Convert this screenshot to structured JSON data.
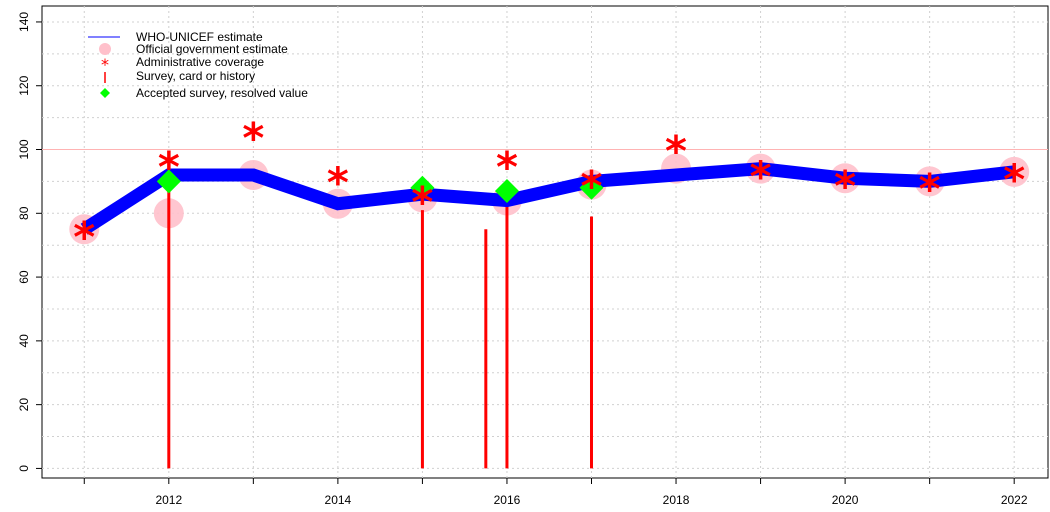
{
  "chart_data": {
    "type": "line",
    "x": [
      2011,
      2012,
      2013,
      2014,
      2015,
      2016,
      2017,
      2018,
      2019,
      2020,
      2021,
      2022
    ],
    "xlim": [
      2010.5,
      2022.4
    ],
    "ylim": [
      -3,
      145
    ],
    "x_ticks": [
      2012,
      2014,
      2016,
      2018,
      2020,
      2022
    ],
    "y_ticks": [
      0,
      20,
      40,
      60,
      80,
      100,
      120,
      140
    ],
    "grid": true,
    "reference_line": 100,
    "legend_position": "top-left",
    "series": [
      {
        "name": "WHO-UNICEF estimate",
        "color": "#0000ff",
        "points": [
          [
            2011,
            75
          ],
          [
            2012,
            92
          ],
          [
            2013,
            92
          ],
          [
            2014,
            83
          ],
          [
            2015,
            86
          ],
          [
            2016,
            84
          ],
          [
            2017,
            90
          ],
          [
            2018,
            92
          ],
          [
            2019,
            94
          ],
          [
            2020,
            91
          ],
          [
            2021,
            90
          ],
          [
            2022,
            93
          ]
        ]
      },
      {
        "name": "Official government estimate",
        "color": "#ffc0cb",
        "points": [
          [
            2011,
            75
          ],
          [
            2012,
            80
          ],
          [
            2013,
            92
          ],
          [
            2014,
            83
          ],
          [
            2015,
            85
          ],
          [
            2016,
            84
          ],
          [
            2017,
            89
          ],
          [
            2018,
            94
          ],
          [
            2019,
            94
          ],
          [
            2020,
            91
          ],
          [
            2021,
            90
          ],
          [
            2022,
            93
          ]
        ]
      },
      {
        "name": "Administrative coverage",
        "color": "#ff0000",
        "points": [
          [
            2011,
            74
          ],
          [
            2012,
            96
          ],
          [
            2013,
            105
          ],
          [
            2014,
            91
          ],
          [
            2015,
            85
          ],
          [
            2016,
            96
          ],
          [
            2017,
            90
          ],
          [
            2018,
            101
          ],
          [
            2019,
            93
          ],
          [
            2020,
            90
          ],
          [
            2021,
            89
          ],
          [
            2022,
            92
          ]
        ]
      },
      {
        "name": "Survey, card or history",
        "color": "#ff0000",
        "points": [
          [
            2012,
            92
          ],
          [
            2015,
            81
          ],
          [
            2015.75,
            75
          ],
          [
            2016,
            88
          ],
          [
            2017,
            79
          ]
        ]
      },
      {
        "name": "Accepted survey, resolved value",
        "color": "#00ff00",
        "points": [
          [
            2012,
            90
          ],
          [
            2015,
            88
          ],
          [
            2016,
            87
          ],
          [
            2017,
            88
          ]
        ]
      }
    ]
  },
  "legend": {
    "items": [
      {
        "label": "WHO-UNICEF estimate"
      },
      {
        "label": "Official government estimate"
      },
      {
        "label": "Administrative coverage"
      },
      {
        "label": "Survey, card or history"
      },
      {
        "label": "Accepted survey, resolved value"
      }
    ]
  }
}
